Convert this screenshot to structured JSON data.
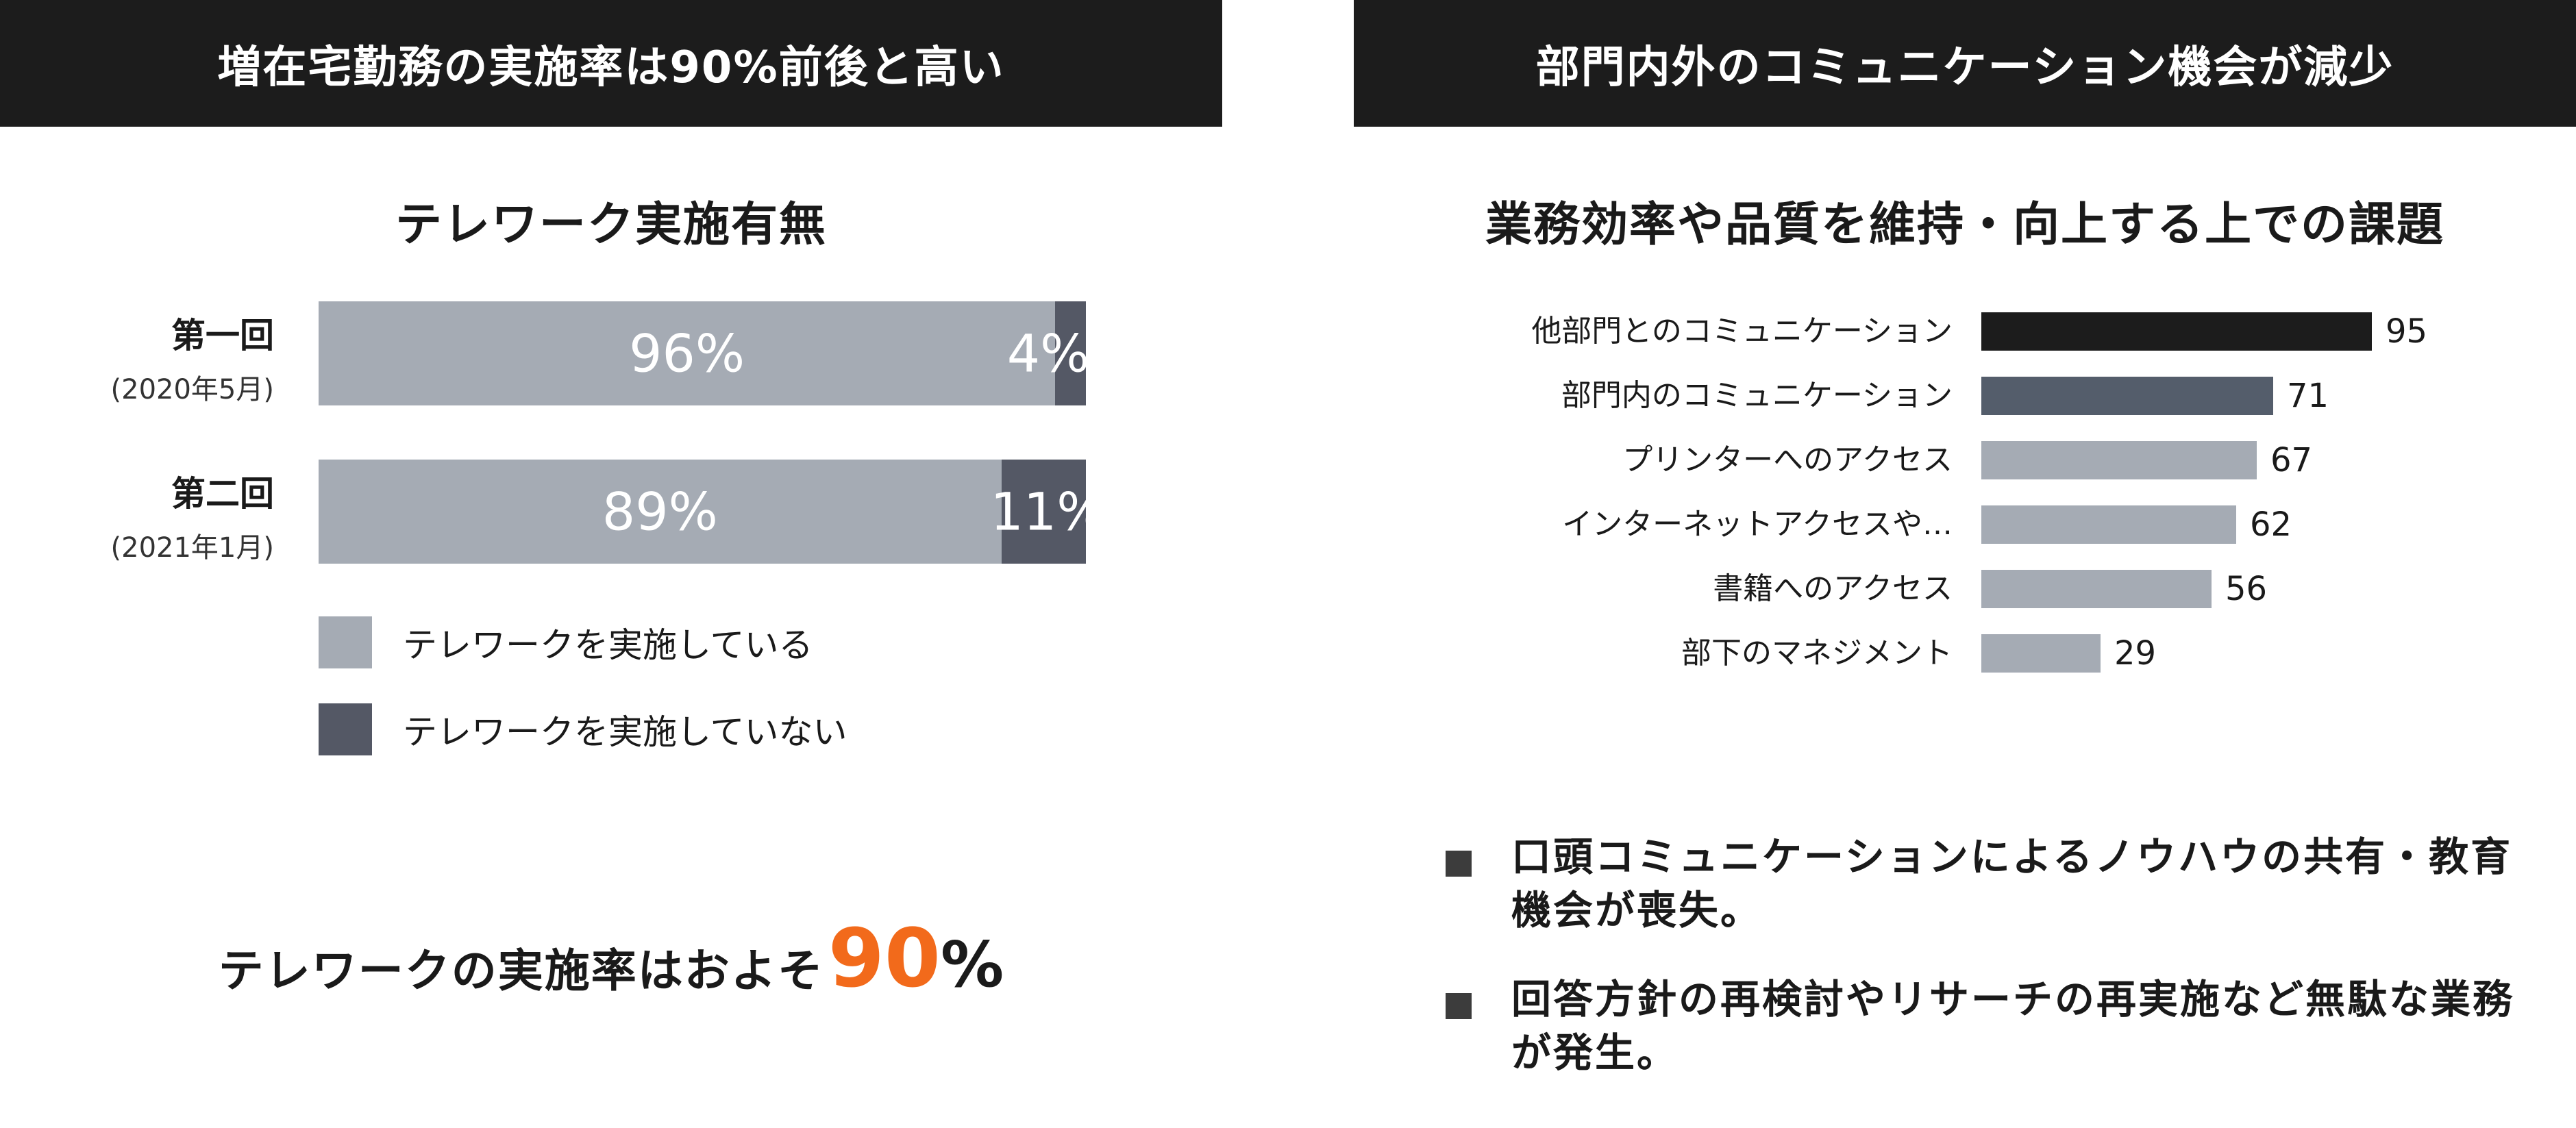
{
  "left_panel": {
    "header": "増在宅勤務の実施率は90%前後と高い",
    "chart_title": "テレワーク実施有無",
    "rounds": [
      {
        "label": "第一回",
        "sublabel": "(2020年5月)",
        "yes_label": "96%",
        "no_label": "4%"
      },
      {
        "label": "第二回",
        "sublabel": "(2021年1月)",
        "yes_label": "89%",
        "no_label": "11%"
      }
    ],
    "legend": [
      {
        "label": "テレワークを実施している",
        "color": "#a5abb4"
      },
      {
        "label": "テレワークを実施していない",
        "color": "#545865"
      }
    ],
    "conclusion": {
      "text": "テレワークの実施率はおよそ",
      "number": "90",
      "unit": "%"
    }
  },
  "right_panel": {
    "header": "部門内外のコミュニケーション機会が減少",
    "chart_title": "業務効率や品質を維持・向上する上での課題",
    "bullets": [
      "口頭コミュニケーションによるノウハウの共有・教育機会が喪失。",
      "回答方針の再検討やリサーチの再実施など無駄な業務が発生。"
    ]
  },
  "chart_data": [
    {
      "type": "bar",
      "orientation": "horizontal",
      "stacked": true,
      "normalized_percent": true,
      "title": "テレワーク実施有無",
      "categories": [
        "第一回 (2020年5月)",
        "第二回 (2021年1月)"
      ],
      "series": [
        {
          "name": "テレワークを実施している",
          "values": [
            96,
            89
          ],
          "color": "#a5abb4"
        },
        {
          "name": "テレワークを実施していない",
          "values": [
            4,
            11
          ],
          "color": "#545865"
        }
      ],
      "legend_position": "bottom-left",
      "grid": false
    },
    {
      "type": "bar",
      "orientation": "horizontal",
      "title": "業務効率や品質を維持・向上する上での課題",
      "categories": [
        "他部門とのコミュニケーション",
        "部門内のコミュニケーション",
        "プリンターへのアクセス",
        "インターネットアクセスや…",
        "書籍へのアクセス",
        "部下のマネジメント"
      ],
      "values": [
        95,
        71,
        67,
        62,
        56,
        29
      ],
      "colors": [
        "#1c1c1c",
        "#545d6b",
        "#a5abb4",
        "#a5abb4",
        "#a5abb4",
        "#a5abb4"
      ],
      "xlim": [
        0,
        100
      ],
      "grid": false
    }
  ]
}
